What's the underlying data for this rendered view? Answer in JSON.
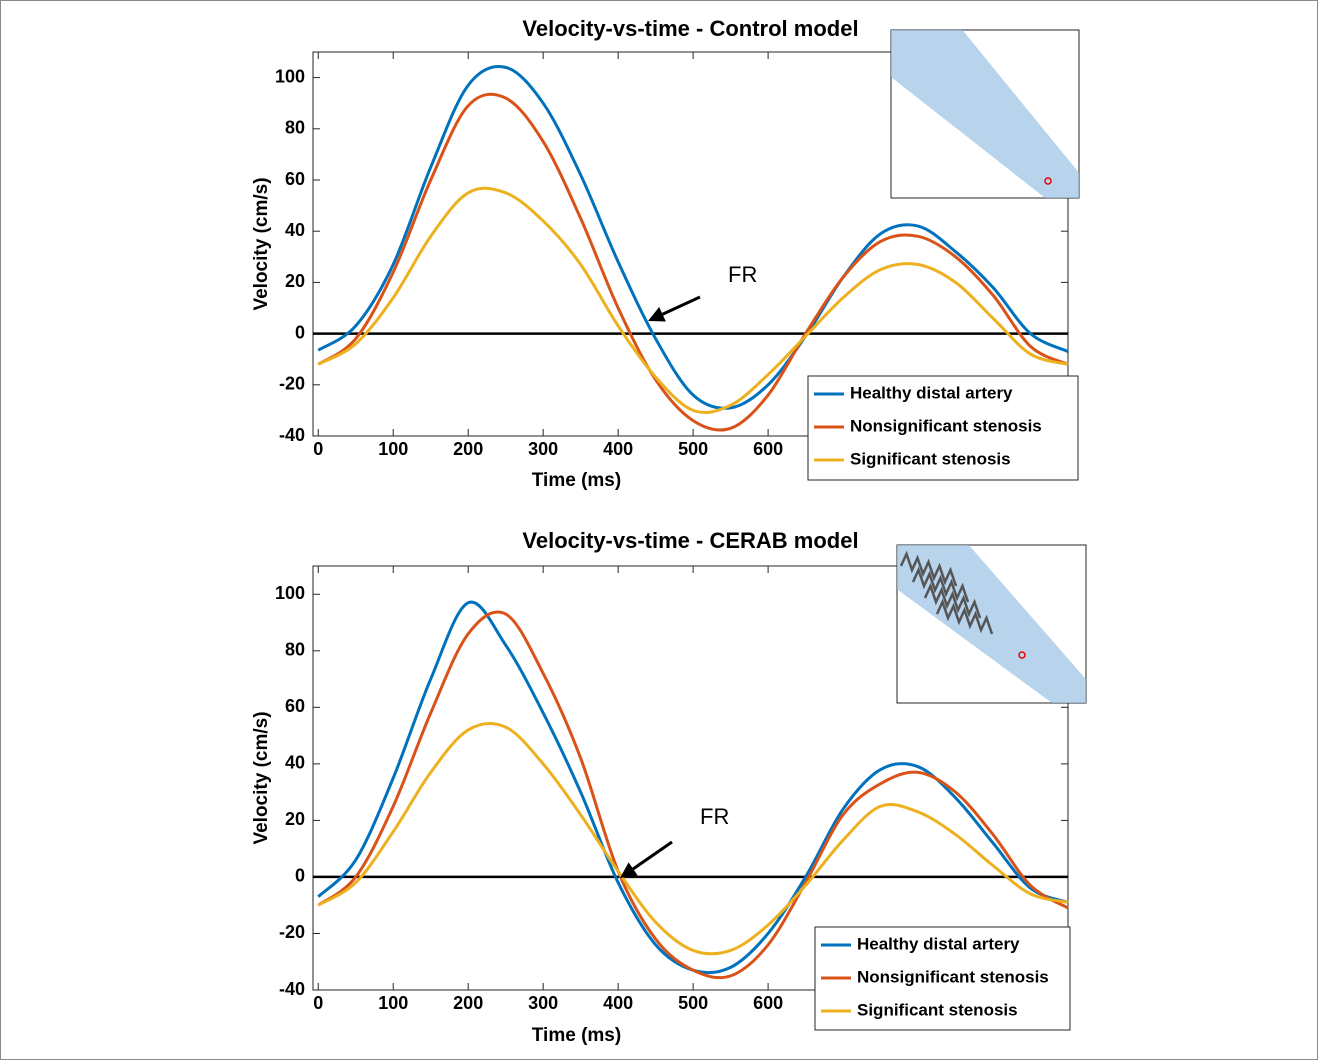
{
  "chart_data": [
    {
      "type": "line",
      "title": "Velocity-vs-time - Control model",
      "xlabel": "Time (ms)",
      "ylabel": "Velocity (cm/s)",
      "x": [
        0,
        50,
        100,
        150,
        200,
        250,
        300,
        350,
        400,
        450,
        500,
        550,
        600,
        650,
        700,
        750,
        800,
        850,
        900,
        950,
        1000
      ],
      "series": [
        {
          "name": "Healthy distal artery",
          "color": "#0072bd",
          "values": [
            -6.5,
            3,
            27,
            65,
            97,
            104,
            90,
            62,
            28,
            -2,
            -24,
            -29,
            -20,
            -1,
            22,
            39,
            42,
            32,
            18,
            0,
            -7
          ]
        },
        {
          "name": "Nonsignificant stenosis",
          "color": "#d95319",
          "values": [
            -12,
            -2,
            24,
            60,
            89,
            92,
            75,
            45,
            10,
            -18,
            -34,
            -37,
            -24,
            0,
            22,
            36,
            38,
            30,
            15,
            -5,
            -12
          ]
        },
        {
          "name": "Significant stenosis",
          "color": "#edb120",
          "values": [
            -12,
            -4,
            14,
            38,
            55,
            55,
            44,
            27,
            3,
            -17,
            -30,
            -28,
            -16,
            -1,
            14,
            25,
            27,
            20,
            6,
            -8,
            -12
          ]
        }
      ],
      "xlim": [
        -7,
        1000
      ],
      "ylim": [
        -40,
        110
      ],
      "xticks": [
        0,
        100,
        200,
        300,
        400,
        500,
        600
      ],
      "yticks": [
        -40,
        -20,
        0,
        20,
        40,
        60,
        80,
        100
      ],
      "hline": 0,
      "annotation": "FR",
      "legend": "lower right"
    },
    {
      "type": "line",
      "title": "Velocity-vs-time - CERAB model",
      "xlabel": "Time (ms)",
      "ylabel": "Velocity (cm/s)",
      "x": [
        0,
        50,
        100,
        150,
        200,
        250,
        300,
        350,
        400,
        450,
        500,
        550,
        600,
        650,
        700,
        750,
        800,
        850,
        900,
        950,
        1000
      ],
      "series": [
        {
          "name": "Healthy distal artery",
          "color": "#0072bd",
          "values": [
            -7,
            6,
            35,
            70,
            97,
            82,
            58,
            30,
            -2,
            -24,
            -33,
            -32,
            -20,
            0,
            24,
            38,
            39,
            28,
            12,
            -4,
            -9
          ]
        },
        {
          "name": "Nonsignificant stenosis",
          "color": "#d95319",
          "values": [
            -10,
            0,
            25,
            58,
            86,
            93,
            72,
            42,
            2,
            -22,
            -33,
            -35,
            -24,
            -2,
            22,
            33,
            37,
            30,
            15,
            -3,
            -11
          ]
        },
        {
          "name": "Significant stenosis",
          "color": "#edb120",
          "values": [
            -10,
            -2,
            16,
            37,
            52,
            53,
            40,
            22,
            2,
            -16,
            -26,
            -26,
            -17,
            -3,
            13,
            25,
            23,
            15,
            4,
            -6,
            -9
          ]
        }
      ],
      "xlim": [
        -7,
        1000
      ],
      "ylim": [
        -40,
        110
      ],
      "xticks": [
        0,
        100,
        200,
        300,
        400,
        500,
        600
      ],
      "yticks": [
        -40,
        -20,
        0,
        20,
        40,
        60,
        80,
        100
      ],
      "hline": 0,
      "annotation": "FR",
      "legend": "lower right"
    }
  ]
}
